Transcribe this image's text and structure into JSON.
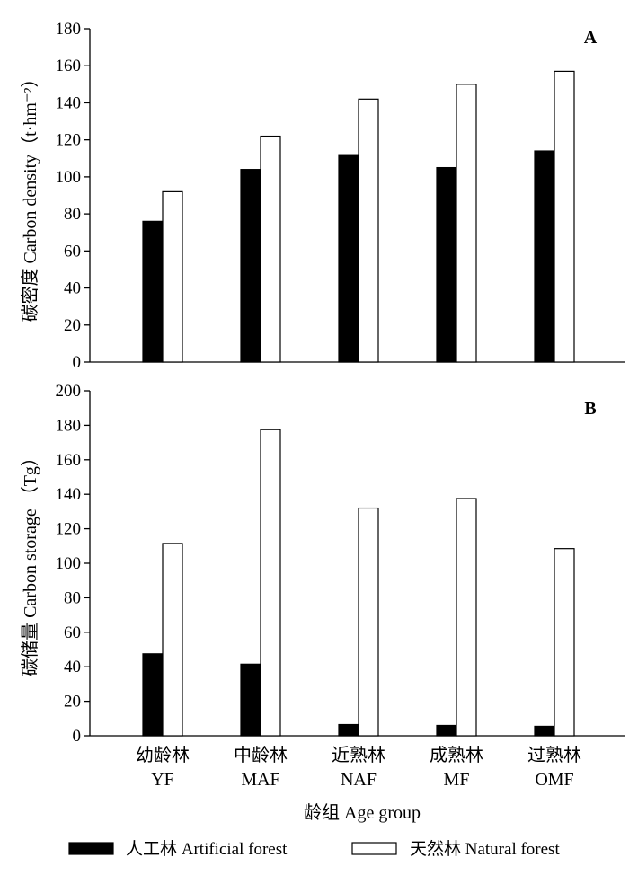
{
  "chart_data": [
    {
      "type": "bar",
      "panel_label": "A",
      "ylabel": "碳密度  Carbon density（t·hm⁻²）",
      "ylim": [
        0,
        180
      ],
      "yticks": [
        0,
        20,
        40,
        60,
        80,
        100,
        120,
        140,
        160,
        180
      ],
      "categories": [
        "YF",
        "MAF",
        "NAF",
        "MF",
        "OMF"
      ],
      "grid": false,
      "series": [
        {
          "name": "人工林  Artificial forest",
          "color": "#000000",
          "values": [
            76,
            104,
            112,
            105,
            114
          ]
        },
        {
          "name": "天然林  Natural forest",
          "color": "#ffffff",
          "values": [
            92,
            122,
            142,
            150,
            157
          ]
        }
      ]
    },
    {
      "type": "bar",
      "panel_label": "B",
      "ylabel": "碳储量 Carbon storage  （Tg）",
      "ylim": [
        0,
        200
      ],
      "yticks": [
        0,
        20,
        40,
        60,
        80,
        100,
        120,
        140,
        160,
        180,
        200
      ],
      "categories_cn": [
        "幼龄林",
        "中龄林",
        "近熟林",
        "成熟林",
        "过熟林"
      ],
      "categories": [
        "YF",
        "MAF",
        "NAF",
        "MF",
        "OMF"
      ],
      "xlabel": "龄组   Age group",
      "grid": false,
      "series": [
        {
          "name": "人工林  Artificial forest",
          "color": "#000000",
          "values": [
            47.5,
            41.5,
            6.5,
            6,
            5.5
          ]
        },
        {
          "name": "天然林  Natural forest",
          "color": "#ffffff",
          "values": [
            111.5,
            177.5,
            132,
            137.5,
            108.5
          ]
        }
      ]
    }
  ],
  "legend": {
    "placement": "bottom",
    "items": [
      {
        "label": "人工林  Artificial forest",
        "color": "#000000"
      },
      {
        "label": "天然林  Natural forest",
        "color": "#ffffff"
      }
    ]
  }
}
